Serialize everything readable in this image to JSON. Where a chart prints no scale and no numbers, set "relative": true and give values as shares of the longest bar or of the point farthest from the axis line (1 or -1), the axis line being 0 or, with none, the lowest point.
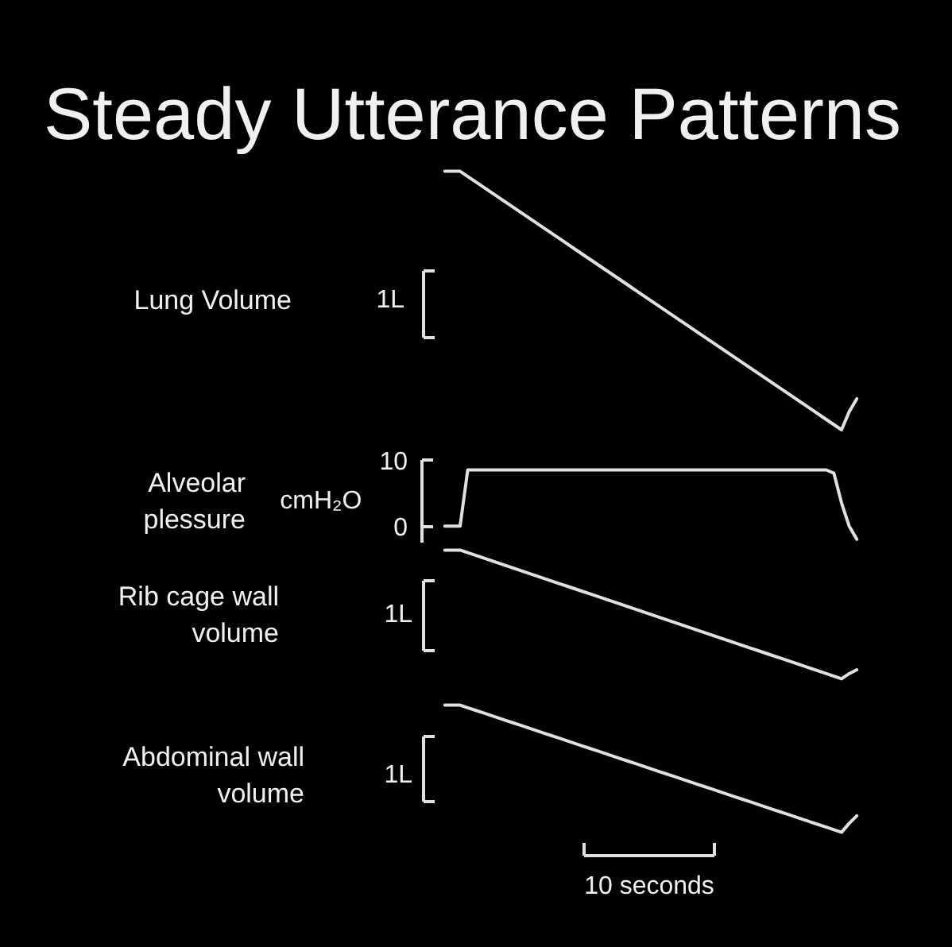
{
  "chart_data": [
    {
      "type": "line",
      "title": "Steady Utterance Patterns",
      "ylabel": "Lung Volume",
      "relative": true,
      "categories": [
        null,
        null,
        null,
        null,
        null,
        null,
        null,
        null,
        null,
        null,
        null,
        null,
        null,
        null,
        null,
        null,
        null,
        null,
        null,
        null,
        null,
        null,
        null,
        null,
        null,
        null,
        null,
        null,
        null,
        null,
        null,
        null,
        null,
        null,
        null,
        null,
        null,
        null,
        null,
        null,
        null,
        null,
        null,
        null,
        null,
        null,
        null,
        null,
        null,
        null,
        null,
        null,
        null,
        null,
        null
      ],
      "series": [
        {
          "color": "#e0e0e0",
          "values": [
            1,
            1,
            1,
            0.98,
            0.96,
            0.94,
            0.92,
            0.9,
            0.88,
            0.86,
            0.84,
            0.82,
            0.8,
            0.78,
            0.76,
            0.74,
            0.72,
            0.7,
            0.68,
            0.66,
            0.64,
            0.62,
            0.6,
            0.58,
            0.56,
            0.54,
            0.52,
            0.5,
            0.48,
            0.46,
            0.44,
            0.42,
            0.4,
            0.38,
            0.36,
            0.34,
            0.32,
            0.3,
            0.28,
            0.26,
            0.24,
            0.22,
            0.2,
            0.18,
            0.16,
            0.14,
            0.12,
            0.1,
            0.08,
            0.06,
            0.04,
            0.02,
            0,
            0.07,
            0.12
          ]
        }
      ],
      "annotations": [
        "1L"
      ]
    },
    {
      "type": "line",
      "ylabel": "Alveolar plessure",
      "ylim": [
        -2.5,
        10
      ],
      "yticks": [
        0,
        10
      ],
      "categories": [
        null,
        null,
        null,
        null,
        null,
        null,
        null,
        null,
        null,
        null,
        null,
        null,
        null,
        null,
        null,
        null,
        null,
        null,
        null,
        null,
        null,
        null,
        null,
        null,
        null,
        null,
        null,
        null,
        null,
        null,
        null,
        null,
        null,
        null,
        null,
        null,
        null,
        null,
        null,
        null,
        null,
        null,
        null,
        null,
        null,
        null,
        null,
        null,
        null,
        null,
        null,
        null,
        null,
        null,
        null
      ],
      "series": [
        {
          "color": "#e0e0e0",
          "values": [
            0,
            0,
            0,
            8.5,
            8.5,
            8.5,
            8.5,
            8.5,
            8.5,
            8.5,
            8.5,
            8.5,
            8.5,
            8.5,
            8.5,
            8.5,
            8.5,
            8.5,
            8.5,
            8.5,
            8.5,
            8.5,
            8.5,
            8.5,
            8.5,
            8.5,
            8.5,
            8.5,
            8.5,
            8.5,
            8.5,
            8.5,
            8.5,
            8.5,
            8.5,
            8.5,
            8.5,
            8.5,
            8.5,
            8.5,
            8.5,
            8.5,
            8.5,
            8.5,
            8.5,
            8.5,
            8.5,
            8.5,
            8.5,
            8.5,
            8.5,
            8,
            3.5,
            0,
            -2
          ]
        }
      ],
      "annotations": [
        "cmH₂O"
      ]
    },
    {
      "type": "line",
      "ylabel": "Rib cage wall volume",
      "relative": true,
      "categories": [
        null,
        null,
        null,
        null,
        null,
        null,
        null,
        null,
        null,
        null,
        null,
        null,
        null,
        null,
        null,
        null,
        null,
        null,
        null,
        null,
        null,
        null,
        null,
        null,
        null,
        null,
        null,
        null,
        null,
        null,
        null,
        null,
        null,
        null,
        null,
        null,
        null,
        null,
        null,
        null,
        null,
        null,
        null,
        null,
        null,
        null,
        null,
        null,
        null,
        null,
        null,
        null,
        null,
        null,
        null
      ],
      "series": [
        {
          "color": "#e0e0e0",
          "values": [
            1,
            1,
            1,
            0.98,
            0.96,
            0.94,
            0.92,
            0.9,
            0.88,
            0.86,
            0.84,
            0.82,
            0.8,
            0.78,
            0.76,
            0.74,
            0.72,
            0.7,
            0.68,
            0.66,
            0.64,
            0.62,
            0.6,
            0.58,
            0.56,
            0.54,
            0.52,
            0.5,
            0.48,
            0.46,
            0.44,
            0.42,
            0.4,
            0.38,
            0.36,
            0.34,
            0.32,
            0.3,
            0.28,
            0.26,
            0.24,
            0.22,
            0.2,
            0.18,
            0.16,
            0.14,
            0.12,
            0.1,
            0.08,
            0.06,
            0.04,
            0.02,
            0,
            0.04,
            0.07
          ]
        }
      ],
      "annotations": [
        "1L"
      ]
    },
    {
      "type": "line",
      "ylabel": "Abdominal wall volume",
      "relative": true,
      "categories": [
        null,
        null,
        null,
        null,
        null,
        null,
        null,
        null,
        null,
        null,
        null,
        null,
        null,
        null,
        null,
        null,
        null,
        null,
        null,
        null,
        null,
        null,
        null,
        null,
        null,
        null,
        null,
        null,
        null,
        null,
        null,
        null,
        null,
        null,
        null,
        null,
        null,
        null,
        null,
        null,
        null,
        null,
        null,
        null,
        null,
        null,
        null,
        null,
        null,
        null,
        null,
        null,
        null,
        null,
        null
      ],
      "series": [
        {
          "color": "#e0e0e0",
          "values": [
            1,
            1,
            1,
            0.98,
            0.96,
            0.94,
            0.92,
            0.9,
            0.88,
            0.86,
            0.84,
            0.82,
            0.8,
            0.78,
            0.76,
            0.74,
            0.72,
            0.7,
            0.68,
            0.66,
            0.64,
            0.62,
            0.6,
            0.58,
            0.56,
            0.54,
            0.52,
            0.5,
            0.48,
            0.46,
            0.44,
            0.42,
            0.4,
            0.38,
            0.36,
            0.34,
            0.32,
            0.3,
            0.28,
            0.26,
            0.24,
            0.22,
            0.2,
            0.18,
            0.16,
            0.14,
            0.12,
            0.1,
            0.08,
            0.06,
            0.04,
            0.02,
            0,
            0.07,
            0.13
          ]
        }
      ],
      "annotations": [
        "1L",
        "10 seconds"
      ]
    }
  ]
}
